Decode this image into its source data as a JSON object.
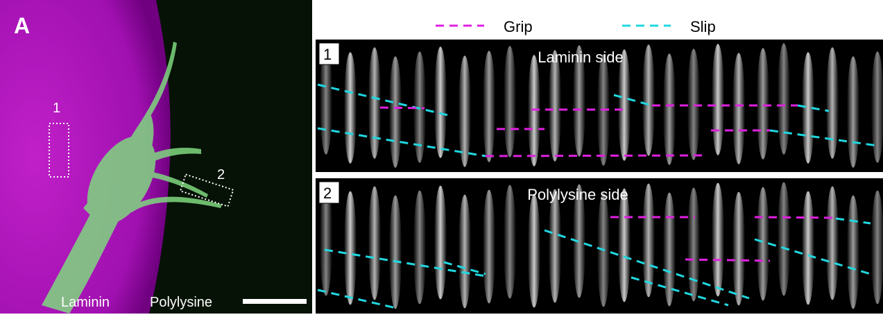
{
  "panel_label": "A",
  "left_image": {
    "roi_labels": [
      "1",
      "2"
    ],
    "bottom_labels": [
      "Laminin",
      "Polylysine"
    ]
  },
  "legend": [
    {
      "label": "Grip"
    },
    {
      "label": "Slip"
    }
  ],
  "kymographs": [
    {
      "number": "1",
      "title": "Laminin side"
    },
    {
      "number": "2",
      "title": "Polylysine side"
    }
  ]
}
